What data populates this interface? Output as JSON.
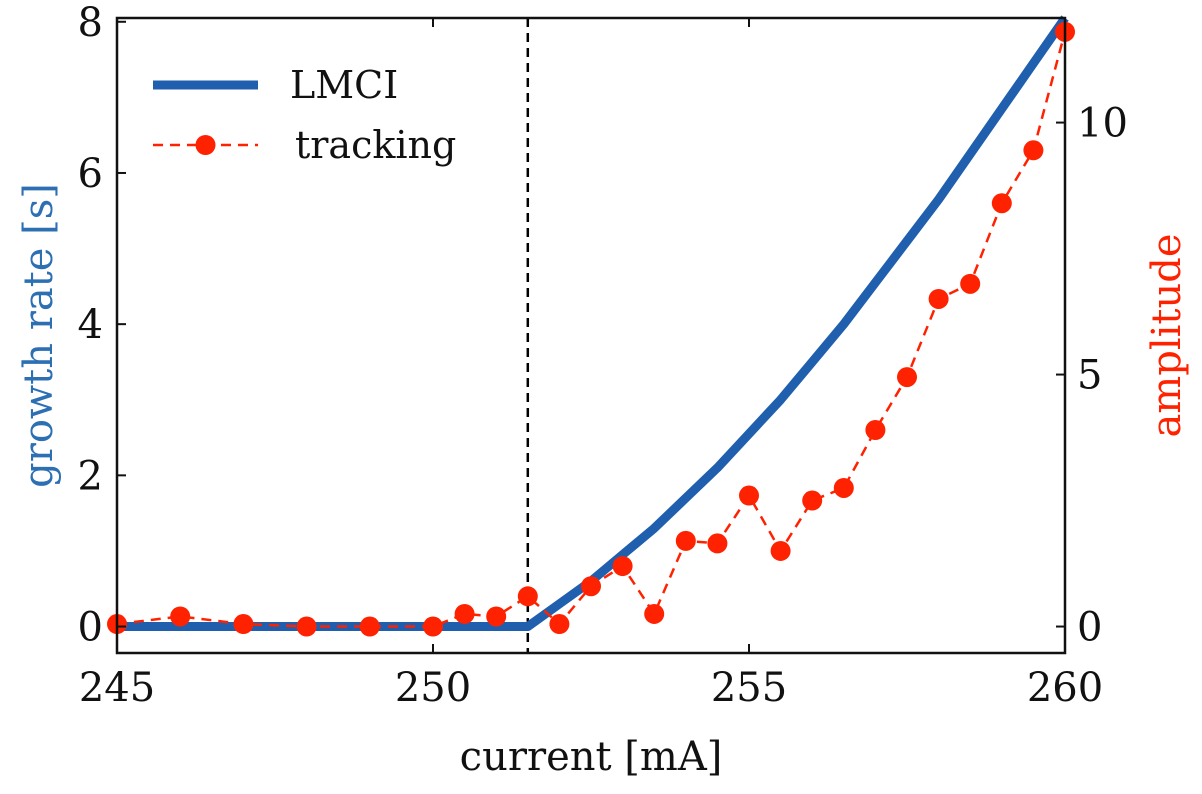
{
  "chart_data": {
    "type": "line",
    "xlabel": "current [mA]",
    "ylabel_left": "growth rate [s]",
    "ylabel_right": "amplitude",
    "xlim": [
      245,
      260
    ],
    "ylim_left": [
      -0.35,
      8.05
    ],
    "ylim_right": [
      -0.525,
      12.075
    ],
    "x_ticks": [
      245,
      250,
      255,
      260
    ],
    "y_ticks_left": [
      0,
      2,
      4,
      6,
      8
    ],
    "y_ticks_right": [
      0,
      5,
      10
    ],
    "threshold_x": 251.5,
    "colors": {
      "left_axis_label": "#2c6fb3",
      "right_axis_label": "#ff2200",
      "lmci": "#1f5fae",
      "tracking": "#ff2200",
      "threshold": "#000000"
    },
    "legend": {
      "position": "top-left",
      "items": [
        "LMCI",
        "tracking"
      ]
    },
    "series": [
      {
        "name": "LMCI",
        "axis": "left",
        "style": "solid",
        "x": [
          245,
          246,
          247,
          248,
          249,
          250,
          251,
          251.5,
          252,
          252.5,
          253,
          253.5,
          254,
          254.5,
          255,
          255.5,
          256,
          256.5,
          257,
          257.5,
          258,
          258.5,
          259,
          259.5,
          260
        ],
        "values": [
          0,
          0,
          0,
          0,
          0,
          0,
          0,
          0,
          0.3,
          0.6,
          0.95,
          1.3,
          1.7,
          2.1,
          2.55,
          3.0,
          3.5,
          4.0,
          4.55,
          5.1,
          5.65,
          6.25,
          6.85,
          7.45,
          8.05
        ]
      },
      {
        "name": "tracking",
        "axis": "right",
        "style": "dashed",
        "marker": "circle",
        "x": [
          245,
          246,
          247,
          248,
          249,
          250,
          250.5,
          251,
          251.5,
          252,
          252.5,
          253,
          253.5,
          254,
          254.5,
          255,
          255.5,
          256,
          256.5,
          257,
          257.5,
          258,
          258.5,
          259,
          259.5,
          260
        ],
        "values": [
          0.05,
          0.2,
          0.05,
          0.0,
          0.0,
          0.0,
          0.25,
          0.2,
          0.6,
          0.05,
          0.8,
          1.2,
          0.25,
          1.7,
          1.65,
          2.6,
          1.5,
          2.5,
          2.75,
          3.9,
          4.95,
          6.5,
          6.8,
          8.4,
          9.45,
          11.8
        ]
      }
    ]
  }
}
